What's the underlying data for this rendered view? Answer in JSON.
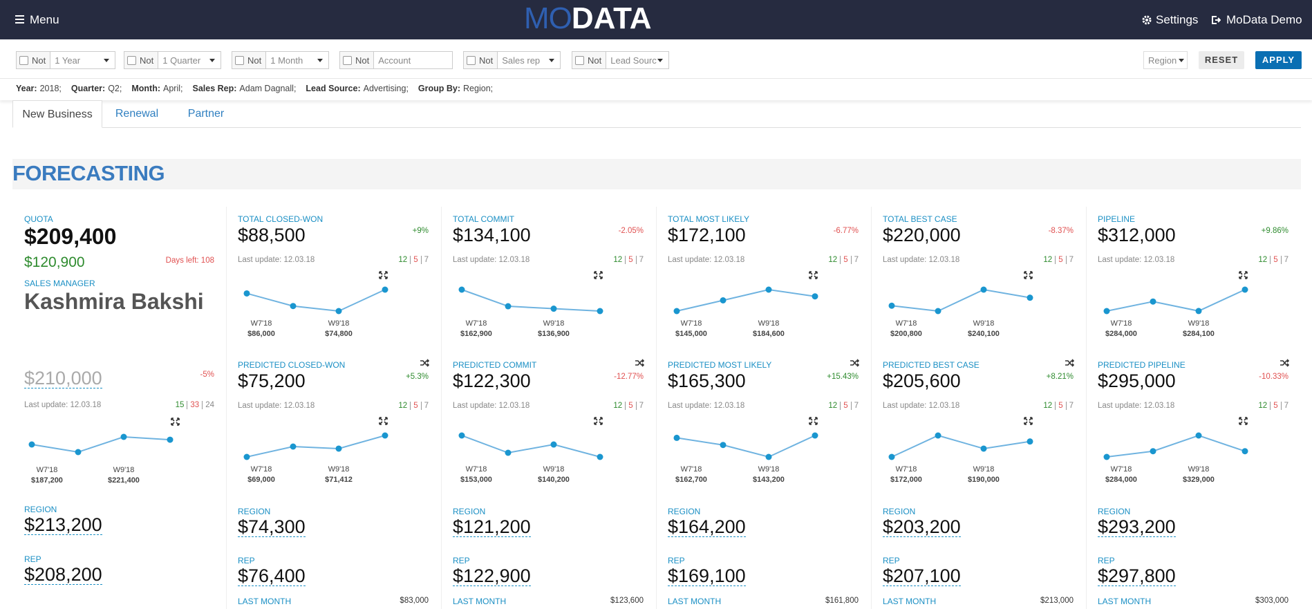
{
  "header": {
    "menu": "Menu",
    "logo_a": "MO",
    "logo_b": "DATA",
    "settings": "Settings",
    "user": "MoData Demo"
  },
  "filters": [
    {
      "not": "Not",
      "value": "1 Year"
    },
    {
      "not": "Not",
      "value": "1 Quarter"
    },
    {
      "not": "Not",
      "value": "1 Month"
    },
    {
      "not": "Not",
      "value": "Account"
    },
    {
      "not": "Not",
      "value": "Sales rep"
    },
    {
      "not": "Not",
      "value": "Lead Sourc.."
    }
  ],
  "group_select": "Region",
  "reset": "RESET",
  "apply": "APPLY",
  "summary": [
    {
      "key": "Year:",
      "value": "2018;"
    },
    {
      "key": "Quarter:",
      "value": "Q2;"
    },
    {
      "key": "Month:",
      "value": "April;"
    },
    {
      "key": "Sales Rep:",
      "value": "Adam Dagnall;"
    },
    {
      "key": "Lead Source:",
      "value": "Advertising;"
    },
    {
      "key": "Group By:",
      "value": "Region;"
    }
  ],
  "tabs": [
    "New Business",
    "Renewal",
    "Partner"
  ],
  "section_title": "FORECASTING",
  "quota": {
    "label": "QUOTA",
    "value": "$209,400",
    "achieved": "$120,900",
    "days_left": "Days left: 108",
    "manager_label": "SALES MANAGER",
    "manager": "Kashmira Bakshi",
    "forecast": {
      "value": "$210,000",
      "change": "-5%",
      "last_update": "Last update: 12.03.18",
      "counts": [
        15,
        33,
        24
      ],
      "trend": {
        "points": [
          187200,
          153000,
          221400,
          208600
        ],
        "labels": [
          {
            "week": "W7'18",
            "value": "$187,200"
          },
          {
            "week": "W9'18",
            "value": "$221,400"
          }
        ]
      }
    },
    "region_label": "REGION",
    "region": "$213,200",
    "rep_label": "REP",
    "rep": "$208,200"
  },
  "columns": [
    {
      "top": {
        "label": "TOTAL CLOSED-WON",
        "value": "$88,500",
        "change": "+9%",
        "last_update": "Last update: 12.03.18",
        "counts": [
          12,
          5,
          7
        ],
        "trend": {
          "points": [
            86000,
            78000,
            74800,
            88400
          ],
          "labels": [
            {
              "week": "W7'18",
              "value": "$86,000"
            },
            {
              "week": "W9'18",
              "value": "$74,800"
            }
          ]
        }
      },
      "predicted": {
        "label": "PREDICTED CLOSED-WON",
        "value": "$75,200",
        "change": "+5.3%",
        "last_update": "Last update: 12.03.18",
        "counts": [
          12,
          5,
          7
        ],
        "trend": {
          "points": [
            69000,
            72000,
            71412,
            75200
          ],
          "labels": [
            {
              "week": "W7'18",
              "value": "$69,000"
            },
            {
              "week": "W9'18",
              "value": "$71,412"
            }
          ]
        }
      },
      "region_label": "REGION",
      "region": "$74,300",
      "rep_label": "REP",
      "rep": "$76,400",
      "last_month_label": "LAST MONTH",
      "last_month": "$83,000"
    },
    {
      "top": {
        "label": "TOTAL COMMIT",
        "value": "$134,100",
        "change": "-2.05%",
        "last_update": "Last update: 12.03.18",
        "counts": [
          12,
          5,
          7
        ],
        "trend": {
          "points": [
            162900,
            140200,
            136900,
            133600
          ],
          "labels": [
            {
              "week": "W7'18",
              "value": "$162,900"
            },
            {
              "week": "W9'18",
              "value": "$136,900"
            }
          ]
        }
      },
      "predicted": {
        "label": "PREDICTED COMMIT",
        "value": "$122,300",
        "change": "-12.77%",
        "last_update": "Last update: 12.03.18",
        "counts": [
          12,
          5,
          7
        ],
        "trend": {
          "points": [
            153000,
            128400,
            140200,
            122500
          ],
          "labels": [
            {
              "week": "W7'18",
              "value": "$153,000"
            },
            {
              "week": "W9'18",
              "value": "$140,200"
            }
          ]
        }
      },
      "region_label": "REGION",
      "region": "$121,200",
      "rep_label": "REP",
      "rep": "$122,900",
      "last_month_label": "LAST MONTH",
      "last_month": "$123,600"
    },
    {
      "top": {
        "label": "TOTAL MOST LIKELY",
        "value": "$172,100",
        "change": "-6.77%",
        "last_update": "Last update: 12.03.18",
        "counts": [
          12,
          5,
          7
        ],
        "trend": {
          "points": [
            145000,
            164800,
            184600,
            172200
          ],
          "labels": [
            {
              "week": "W7'18",
              "value": "$145,000"
            },
            {
              "week": "W9'18",
              "value": "$184,600"
            }
          ]
        }
      },
      "predicted": {
        "label": "PREDICTED MOST LIKELY",
        "value": "$165,300",
        "change": "+15.43%",
        "last_update": "Last update: 12.03.18",
        "counts": [
          12,
          5,
          7
        ],
        "trend": {
          "points": [
            162700,
            155400,
            143200,
            165100
          ],
          "labels": [
            {
              "week": "W7'18",
              "value": "$162,700"
            },
            {
              "week": "W9'18",
              "value": "$143,200"
            }
          ]
        }
      },
      "region_label": "REGION",
      "region": "$164,200",
      "rep_label": "REP",
      "rep": "$169,100",
      "last_month_label": "LAST MONTH",
      "last_month": "$161,800"
    },
    {
      "top": {
        "label": "TOTAL BEST CASE",
        "value": "$220,000",
        "change": "-8.37%",
        "last_update": "Last update: 12.03.18",
        "counts": [
          12,
          5,
          7
        ],
        "trend": {
          "points": [
            200800,
            187700,
            240100,
            220400
          ],
          "labels": [
            {
              "week": "W7'18",
              "value": "$200,800"
            },
            {
              "week": "W9'18",
              "value": "$240,100"
            }
          ]
        }
      },
      "predicted": {
        "label": "PREDICTED BEST CASE",
        "value": "$205,600",
        "change": "+8.21%",
        "last_update": "Last update: 12.03.18",
        "counts": [
          12,
          5,
          7
        ],
        "trend": {
          "points": [
            172000,
            218300,
            190000,
            205400
          ],
          "labels": [
            {
              "week": "W7'18",
              "value": "$172,000"
            },
            {
              "week": "W9'18",
              "value": "$190,000"
            }
          ]
        }
      },
      "region_label": "REGION",
      "region": "$203,200",
      "rep_label": "REP",
      "rep": "$207,100",
      "last_month_label": "LAST MONTH",
      "last_month": "$213,000"
    },
    {
      "top": {
        "label": "PIPELINE",
        "value": "$312,000",
        "change": "+9.86%",
        "last_update": "Last update: 12.03.18",
        "counts": [
          12,
          5,
          7
        ],
        "trend": {
          "points": [
            284000,
            300000,
            284100,
            320000
          ],
          "labels": [
            {
              "week": "W7'18",
              "value": "$284,000"
            },
            {
              "week": "W9'18",
              "value": "$284,100"
            }
          ]
        }
      },
      "predicted": {
        "label": "PREDICTED PIPELINE",
        "value": "$295,000",
        "change": "-10.33%",
        "last_update": "Last update: 12.03.18",
        "counts": [
          12,
          5,
          7
        ],
        "trend": {
          "points": [
            284000,
            296000,
            329000,
            296000
          ],
          "labels": [
            {
              "week": "W7'18",
              "value": "$284,000"
            },
            {
              "week": "W9'18",
              "value": "$329,000"
            }
          ]
        }
      },
      "region_label": "REGION",
      "region": "$293,200",
      "rep_label": "REP",
      "rep": "$297,800",
      "last_month_label": "LAST MONTH",
      "last_month": "$303,000"
    }
  ]
}
